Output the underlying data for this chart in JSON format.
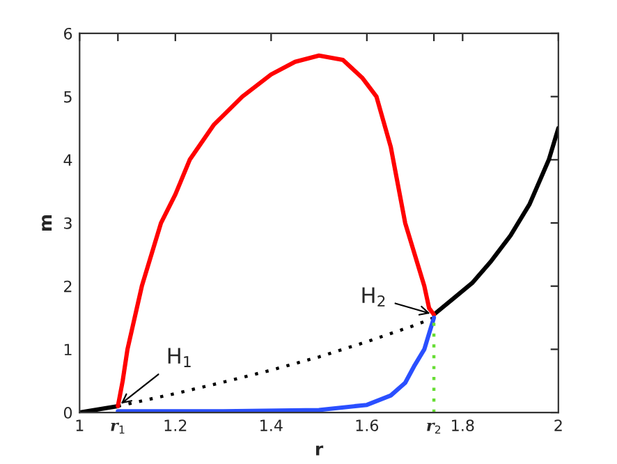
{
  "chart_data": {
    "type": "line",
    "xlabel": "r",
    "ylabel": "m",
    "xlim": [
      1,
      2
    ],
    "ylim": [
      0,
      6
    ],
    "xticks": [
      1,
      {
        "value": 1.08,
        "label": "r$_{1}$"
      },
      1.2,
      1.4,
      1.6,
      {
        "value": 1.74,
        "label": "r$_{2}$"
      },
      1.8,
      2
    ],
    "yticks": [
      0,
      1,
      2,
      3,
      4,
      5,
      6
    ],
    "grid": false,
    "legend": false,
    "marker": "none",
    "series": [
      {
        "color": "#000000",
        "line_style": "solid",
        "x": [
          1,
          1.04,
          1.08
        ],
        "values": [
          0,
          0.05,
          0.1
        ]
      },
      {
        "color": "#000000",
        "line_style": "solid",
        "x": [
          1.74,
          1.78,
          1.82,
          1.86,
          1.9,
          1.94,
          1.98,
          2
        ],
        "values": [
          1.55,
          1.8,
          2.05,
          2.4,
          2.8,
          3.3,
          4.0,
          4.5
        ]
      },
      {
        "color": "#000000",
        "line_style": "dotted",
        "x": [
          1.08,
          1.2,
          1.3,
          1.4,
          1.5,
          1.6,
          1.7,
          1.74
        ],
        "values": [
          0.1,
          0.3,
          0.48,
          0.67,
          0.88,
          1.12,
          1.38,
          1.5
        ]
      },
      {
        "color": "#ff0000",
        "line_style": "solid",
        "x": [
          1.08,
          1.09,
          1.1,
          1.13,
          1.17,
          1.2,
          1.23,
          1.28,
          1.34,
          1.4,
          1.45,
          1.5,
          1.55,
          1.59,
          1.62,
          1.65,
          1.68,
          1.7,
          1.72,
          1.73,
          1.74
        ],
        "values": [
          0.1,
          0.5,
          1.0,
          2.0,
          3.0,
          3.45,
          4.0,
          4.55,
          5.0,
          5.35,
          5.55,
          5.65,
          5.58,
          5.3,
          5.0,
          4.2,
          3.0,
          2.5,
          2.0,
          1.65,
          1.55
        ]
      },
      {
        "color": "#2a4fff",
        "line_style": "solid",
        "x": [
          1.08,
          1.3,
          1.5,
          1.6,
          1.65,
          1.68,
          1.7,
          1.72,
          1.73,
          1.74
        ],
        "values": [
          0.02,
          0.02,
          0.04,
          0.12,
          0.27,
          0.47,
          0.75,
          1.0,
          1.25,
          1.5
        ]
      },
      {
        "color": "#66dd33",
        "line_style": "dotted",
        "x": [
          1.74,
          1.74
        ],
        "values": [
          0,
          1.5
        ]
      }
    ],
    "annotations": [
      {
        "text": "H$_{1}$",
        "x": 1.08,
        "y": 0.1
      },
      {
        "text": "H$_{2}$",
        "x": 1.74,
        "y": 1.55
      }
    ]
  }
}
